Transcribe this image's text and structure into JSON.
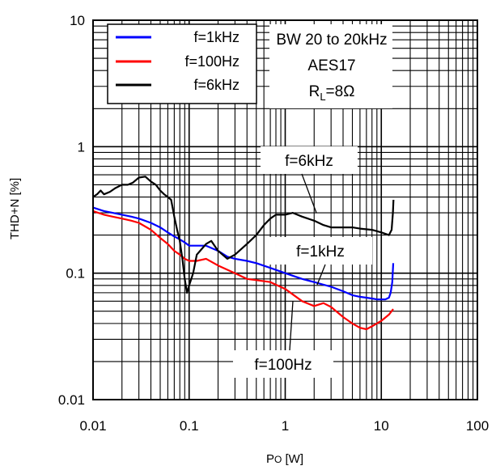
{
  "chart_data": {
    "type": "line",
    "xlabel_main": "P",
    "xlabel_sub": "O",
    "xlabel_unit": " [W]",
    "ylabel": "THD+N [%]",
    "xscale": "log",
    "yscale": "log",
    "xlim": [
      0.01,
      100
    ],
    "ylim": [
      0.01,
      10
    ],
    "x_ticks": [
      "0.01",
      "0.1",
      "1",
      "10",
      "100"
    ],
    "y_ticks": [
      "0.01",
      "0.1",
      "1",
      "10"
    ],
    "grid": true,
    "legend_position": "top-left",
    "conditions": {
      "line1": "BW 20 to 20kHz",
      "line2": "AES17",
      "line3_main": "R",
      "line3_sub": "L",
      "line3_rest": "=8Ω"
    },
    "annotations": {
      "f6k": "f=6kHz",
      "f1k": "f=1kHz",
      "f100": "f=100Hz"
    },
    "series": [
      {
        "name": "f=1kHz",
        "color": "#0000ff",
        "x": [
          0.01,
          0.013,
          0.016,
          0.02,
          0.025,
          0.03,
          0.04,
          0.05,
          0.06,
          0.07,
          0.08,
          0.09,
          0.1,
          0.12,
          0.15,
          0.2,
          0.25,
          0.3,
          0.4,
          0.5,
          0.7,
          1,
          1.5,
          2,
          3,
          4,
          5,
          6,
          7,
          8,
          9,
          10,
          11,
          12,
          12.5,
          13,
          13.3
        ],
        "y": [
          0.33,
          0.31,
          0.3,
          0.29,
          0.28,
          0.27,
          0.25,
          0.23,
          0.21,
          0.195,
          0.185,
          0.175,
          0.165,
          0.165,
          0.165,
          0.15,
          0.135,
          0.13,
          0.125,
          0.12,
          0.11,
          0.1,
          0.09,
          0.085,
          0.078,
          0.072,
          0.067,
          0.065,
          0.064,
          0.063,
          0.062,
          0.062,
          0.062,
          0.064,
          0.07,
          0.085,
          0.12
        ]
      },
      {
        "name": "f=100Hz",
        "color": "#ff0000",
        "x": [
          0.01,
          0.013,
          0.016,
          0.02,
          0.025,
          0.03,
          0.04,
          0.05,
          0.06,
          0.07,
          0.08,
          0.09,
          0.1,
          0.12,
          0.15,
          0.2,
          0.3,
          0.4,
          0.5,
          0.7,
          1,
          1.5,
          2,
          2.5,
          3,
          4,
          5,
          6,
          7,
          8,
          10,
          12,
          13.3
        ],
        "y": [
          0.31,
          0.29,
          0.28,
          0.27,
          0.26,
          0.25,
          0.22,
          0.19,
          0.17,
          0.15,
          0.14,
          0.13,
          0.125,
          0.125,
          0.13,
          0.115,
          0.1,
          0.09,
          0.088,
          0.085,
          0.075,
          0.06,
          0.055,
          0.058,
          0.054,
          0.045,
          0.04,
          0.037,
          0.036,
          0.038,
          0.042,
          0.047,
          0.052
        ]
      },
      {
        "name": "f=6kHz",
        "color": "#000000",
        "x": [
          0.01,
          0.011,
          0.012,
          0.013,
          0.015,
          0.017,
          0.02,
          0.023,
          0.026,
          0.03,
          0.035,
          0.04,
          0.045,
          0.05,
          0.055,
          0.06,
          0.065,
          0.07,
          0.075,
          0.08,
          0.085,
          0.09,
          0.095,
          0.1,
          0.11,
          0.12,
          0.13,
          0.15,
          0.17,
          0.2,
          0.25,
          0.3,
          0.4,
          0.5,
          0.6,
          0.7,
          0.8,
          1,
          1.2,
          1.5,
          2,
          2.5,
          3,
          4,
          5,
          6,
          8,
          10,
          12,
          12.8,
          13.2,
          13.4
        ],
        "y": [
          0.4,
          0.42,
          0.45,
          0.42,
          0.44,
          0.47,
          0.5,
          0.5,
          0.52,
          0.57,
          0.58,
          0.53,
          0.5,
          0.45,
          0.42,
          0.4,
          0.38,
          0.28,
          0.22,
          0.18,
          0.13,
          0.09,
          0.07,
          0.08,
          0.1,
          0.14,
          0.15,
          0.17,
          0.18,
          0.15,
          0.13,
          0.14,
          0.17,
          0.2,
          0.24,
          0.27,
          0.29,
          0.29,
          0.3,
          0.28,
          0.26,
          0.24,
          0.23,
          0.23,
          0.23,
          0.225,
          0.22,
          0.21,
          0.2,
          0.22,
          0.3,
          0.38
        ]
      }
    ]
  }
}
